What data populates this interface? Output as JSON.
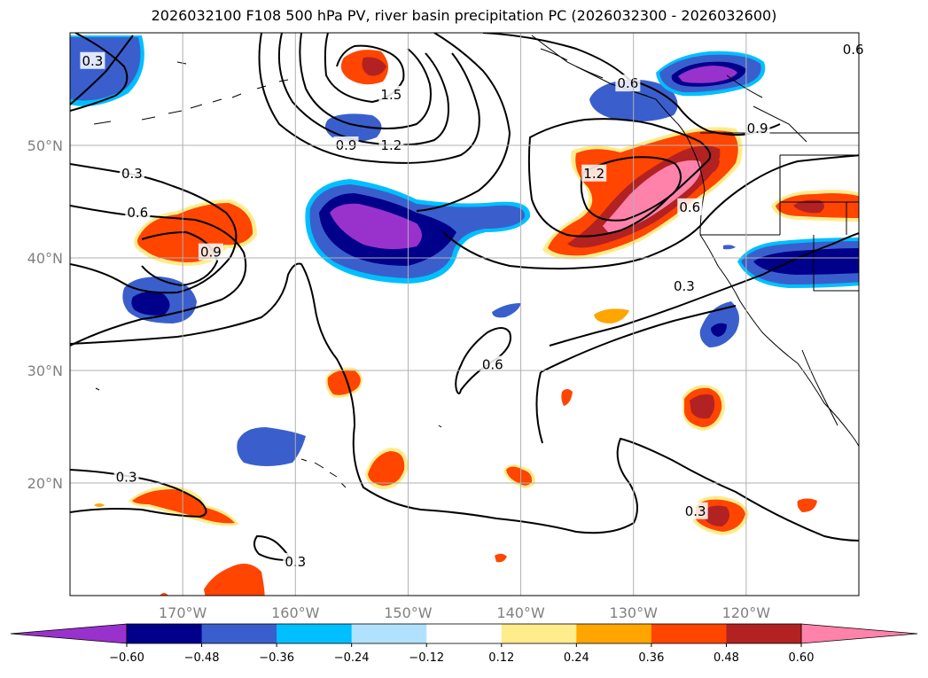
{
  "title": "2026032100 F108 500 hPa PV, river basin precipitation PC (2026032300 - 2026032600)",
  "map": {
    "lon_range": [
      -180,
      -110
    ],
    "lat_range": [
      10,
      60
    ],
    "lat_ticks": [
      {
        "value": 50,
        "label": "50°N"
      },
      {
        "value": 40,
        "label": "40°N"
      },
      {
        "value": 30,
        "label": "30°N"
      },
      {
        "value": 20,
        "label": "20°N"
      }
    ],
    "lon_ticks": [
      {
        "value": -170,
        "label": "170°W"
      },
      {
        "value": -160,
        "label": "160°W"
      },
      {
        "value": -150,
        "label": "150°W"
      },
      {
        "value": -140,
        "label": "140°W"
      },
      {
        "value": -130,
        "label": "130°W"
      },
      {
        "value": -120,
        "label": "120°W"
      }
    ],
    "grid": true
  },
  "contour_labels": [
    {
      "text": "0.3",
      "lon": -178,
      "lat": 57.5
    },
    {
      "text": "1.5",
      "lon": -151.5,
      "lat": 54.5
    },
    {
      "text": "0.9",
      "lon": -155.5,
      "lat": 50
    },
    {
      "text": "1.2",
      "lon": -151.5,
      "lat": 50
    },
    {
      "text": "0.6",
      "lon": -130.5,
      "lat": 55.5
    },
    {
      "text": "0.6",
      "lon": -110.5,
      "lat": 58.5
    },
    {
      "text": "0.9",
      "lon": -119,
      "lat": 51.5
    },
    {
      "text": "1.2",
      "lon": -133.5,
      "lat": 47.5
    },
    {
      "text": "0.6",
      "lon": -125,
      "lat": 44.5
    },
    {
      "text": "0.3",
      "lon": -174.5,
      "lat": 47.5
    },
    {
      "text": "0.6",
      "lon": -174,
      "lat": 44
    },
    {
      "text": "0.9",
      "lon": -167.5,
      "lat": 40.5
    },
    {
      "text": "0.3",
      "lon": -125.5,
      "lat": 37.5
    },
    {
      "text": "0.6",
      "lon": -142.5,
      "lat": 30.5
    },
    {
      "text": "0.3",
      "lon": -175,
      "lat": 20.5
    },
    {
      "text": "0.3",
      "lon": -124.5,
      "lat": 17.5
    },
    {
      "text": "0.3",
      "lon": -160,
      "lat": 13
    }
  ],
  "colorbar": {
    "boundaries": [
      -0.6,
      -0.48,
      -0.36,
      -0.24,
      -0.12,
      0.12,
      0.24,
      0.36,
      0.48,
      0.6
    ],
    "tick_labels": [
      "−0.60",
      "−0.48",
      "−0.36",
      "−0.24",
      "−0.12",
      "0.12",
      "0.24",
      "0.36",
      "0.48",
      "0.60"
    ],
    "colors": [
      "#9932cc",
      "#00008b",
      "#3a5fcd",
      "#00bfff",
      "#b0e2ff",
      "#ffffff",
      "#ffec8b",
      "#ffa500",
      "#ff4500",
      "#b22222",
      "#ff82ab"
    ],
    "extend": "both"
  }
}
